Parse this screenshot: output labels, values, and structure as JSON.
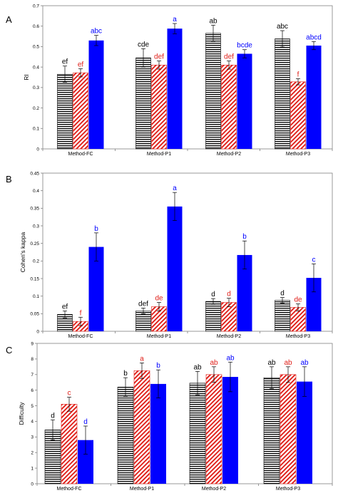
{
  "series_colors": [
    "#000000",
    "#e0201a",
    "#0000ff"
  ],
  "chart_data": [
    {
      "panel": "A",
      "type": "bar",
      "ylabel": "RI",
      "ylim": [
        0,
        0.7
      ],
      "yticks": [
        "0",
        "0.1",
        "0.2",
        "0.3",
        "0.4",
        "0.5",
        "0.6",
        "0.7"
      ],
      "categories": [
        "Method-FC",
        "Method-P1",
        "Method-P2",
        "Method-P3"
      ],
      "series": [
        {
          "values": [
            0.365,
            0.445,
            0.565,
            0.538
          ],
          "errors": [
            0.04,
            0.045,
            0.04,
            0.04
          ],
          "labels": [
            "ef",
            "cde",
            "ab",
            "abc"
          ]
        },
        {
          "values": [
            0.372,
            0.41,
            0.41,
            0.328
          ],
          "errors": [
            0.02,
            0.02,
            0.02,
            0.015
          ],
          "labels": [
            "ef",
            "def",
            "def",
            "f"
          ]
        },
        {
          "values": [
            0.53,
            0.588,
            0.465,
            0.505
          ],
          "errors": [
            0.025,
            0.025,
            0.02,
            0.02
          ],
          "labels": [
            "abc",
            "a",
            "bcde",
            "abcd"
          ]
        }
      ]
    },
    {
      "panel": "B",
      "type": "bar",
      "ylabel": "Cohen's kappa",
      "ylim": [
        0,
        0.45
      ],
      "yticks": [
        "0",
        "0.05",
        "0.1",
        "0.15",
        "0.2",
        "0.25",
        "0.3",
        "0.35",
        "0.4",
        "0.45"
      ],
      "categories": [
        "Method-FC",
        "Method-P1",
        "Method-P2",
        "Method-P3"
      ],
      "series": [
        {
          "values": [
            0.048,
            0.058,
            0.085,
            0.088
          ],
          "errors": [
            0.01,
            0.008,
            0.008,
            0.008
          ],
          "labels": [
            "ef",
            "def",
            "d",
            "d"
          ]
        },
        {
          "values": [
            0.028,
            0.07,
            0.082,
            0.068
          ],
          "errors": [
            0.012,
            0.012,
            0.012,
            0.01
          ],
          "labels": [
            "f",
            "de",
            "d",
            "de"
          ]
        },
        {
          "values": [
            0.24,
            0.355,
            0.217,
            0.152
          ],
          "errors": [
            0.04,
            0.04,
            0.04,
            0.04
          ],
          "labels": [
            "b",
            "a",
            "b",
            "c"
          ]
        }
      ]
    },
    {
      "panel": "C",
      "type": "bar",
      "ylabel": "Difficulty",
      "ylim": [
        0,
        9
      ],
      "yticks": [
        "0",
        "1",
        "2",
        "3",
        "4",
        "5",
        "6",
        "7",
        "8",
        "9"
      ],
      "categories": [
        "Method-FC",
        "Method-P1",
        "Method-P2",
        "Method-P3"
      ],
      "series": [
        {
          "values": [
            3.45,
            6.2,
            6.45,
            6.8
          ],
          "errors": [
            0.65,
            0.6,
            0.75,
            0.7
          ],
          "labels": [
            "d",
            "b",
            "ab",
            "ab"
          ]
        },
        {
          "values": [
            5.1,
            7.25,
            7.0,
            7.0
          ],
          "errors": [
            0.45,
            0.5,
            0.5,
            0.5
          ],
          "labels": [
            "c",
            "a",
            "ab",
            "ab"
          ]
        },
        {
          "values": [
            2.8,
            6.4,
            6.85,
            6.55
          ],
          "errors": [
            0.9,
            0.9,
            0.95,
            0.95
          ],
          "labels": [
            "d",
            "b",
            "ab",
            "ab"
          ]
        }
      ]
    }
  ]
}
